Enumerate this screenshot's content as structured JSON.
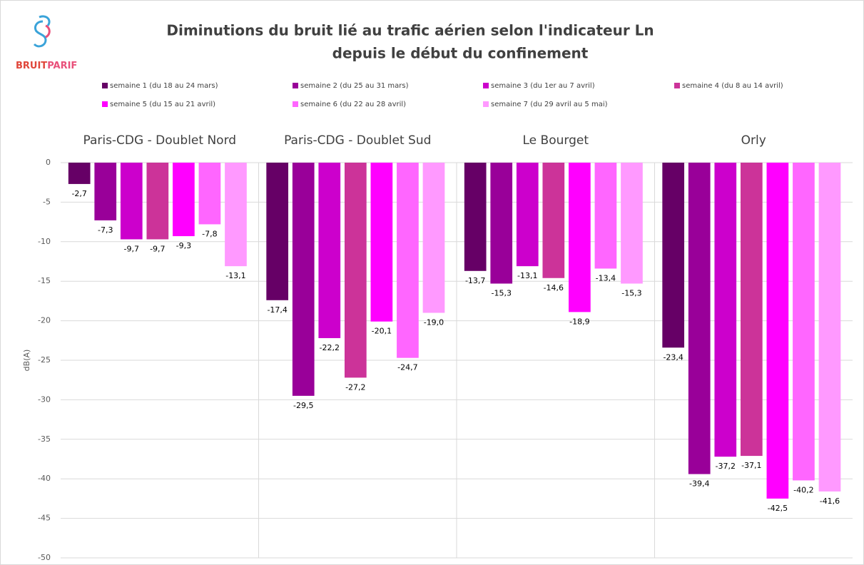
{
  "logo": [
    "BRUIT",
    "PARIF"
  ],
  "chart_data": {
    "type": "bar",
    "title": [
      "Diminutions du bruit lié au trafic aérien selon l'indicateur Ln",
      "depuis le début du confinement"
    ],
    "y_label": "dB(A)",
    "categories": [
      "Paris-CDG - Doublet Nord",
      "Paris-CDG - Doublet Sud",
      "Le Bourget",
      "Orly"
    ],
    "series": [
      {
        "name": "semaine 1 (du 18 au 24 mars)",
        "color": "#660066",
        "values": [
          -2.7,
          -17.4,
          -13.7,
          -23.4
        ],
        "value_labels": [
          "-2,7",
          "-17,4",
          "-13,7",
          "-23,4"
        ]
      },
      {
        "name": "semaine 2 (du 25 au 31 mars)",
        "color": "#990099",
        "values": [
          -7.3,
          -29.5,
          -15.3,
          -39.4
        ],
        "value_labels": [
          "-7,3",
          "-29,5",
          "-15,3",
          "-39,4"
        ]
      },
      {
        "name": "semaine 3 (du 1er au 7 avril)",
        "color": "#cc00cc",
        "values": [
          -9.7,
          -22.2,
          -13.1,
          -37.2
        ],
        "value_labels": [
          "-9,7",
          "-22,2",
          "-13,1",
          "-37,2"
        ]
      },
      {
        "name": "semaine 4 (du 8 au 14 avril)",
        "color": "#cc3399",
        "values": [
          -9.7,
          -27.2,
          -14.6,
          -37.1
        ],
        "value_labels": [
          "-9,7",
          "-27,2",
          "-14,6",
          "-37,1"
        ]
      },
      {
        "name": "semaine 5 (du 15 au 21 avril)",
        "color": "#ff00ff",
        "values": [
          -9.3,
          -20.1,
          -18.9,
          -42.5
        ],
        "value_labels": [
          "-9,3",
          "-20,1",
          "-18,9",
          "-42,5"
        ]
      },
      {
        "name": "semaine 6 (du 22 au 28 avril)",
        "color": "#ff66ff",
        "values": [
          -7.8,
          -24.7,
          -13.4,
          -40.2
        ],
        "value_labels": [
          "-7,8",
          "-24,7",
          "-13,4",
          "-40,2"
        ]
      },
      {
        "name": "semaine 7 (du 29 avril au 5 mai)",
        "color": "#ff99ff",
        "values": [
          -13.1,
          -19.0,
          -15.3,
          -41.6
        ],
        "value_labels": [
          "-13,1",
          "-19,0",
          "-15,3",
          "-41,6"
        ]
      }
    ],
    "ylim": [
      -50,
      0
    ],
    "yticks": [
      0,
      -5,
      -10,
      -15,
      -20,
      -25,
      -30,
      -35,
      -40,
      -45,
      -50
    ],
    "grid": true
  }
}
